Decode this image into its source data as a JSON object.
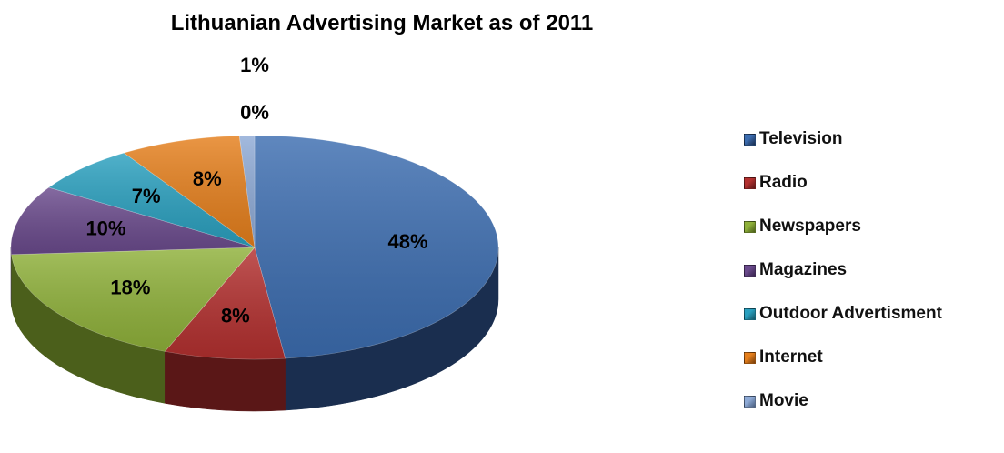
{
  "chart_data": {
    "type": "pie",
    "title": "Lithuanian Advertising Market as of 2011",
    "legend_position": "right",
    "categories": [
      "Television",
      "Radio",
      "Newspapers",
      "Magazines",
      "Outdoor Advertisment",
      "Internet",
      "Movie"
    ],
    "values": [
      48,
      8,
      18,
      10,
      7,
      8,
      1
    ],
    "value_labels": [
      "48%",
      "8%",
      "18%",
      "10%",
      "7%",
      "8%",
      "1%"
    ],
    "extra_label": "0%",
    "colors": [
      "#3c6db0",
      "#b3302f",
      "#8fb13a",
      "#6a4a8c",
      "#2aa0bf",
      "#e57f1c",
      "#8eaad6"
    ],
    "dark_colors": [
      "#1a2e4f",
      "#5a1717",
      "#4b5f1b",
      "#3a2650",
      "#145566",
      "#7a3f0a",
      "#4a5f80"
    ]
  }
}
